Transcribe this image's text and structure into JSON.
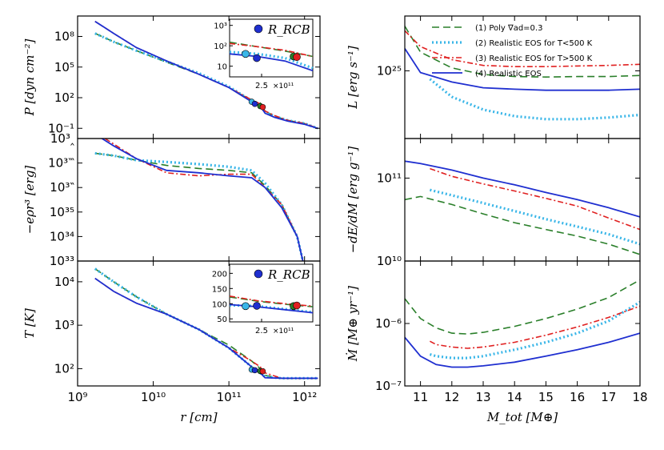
{
  "colors": {
    "poly": "#2a7f2a",
    "lowT": "#3ab6e8",
    "highT": "#e02020",
    "real": "#1f2fd0"
  },
  "chart_data": [
    {
      "id": "P",
      "type": "line",
      "ylabel": "P [dyn cm⁻²]",
      "xscale": "log",
      "yscale": "log",
      "xlim": [
        1000000000.0,
        1600000000000.0
      ],
      "ylim": [
        0.01,
        10000000000.0
      ],
      "ytick_labels": [
        "10⁻¹",
        "10²",
        "10⁵",
        "10⁸"
      ],
      "series": [
        {
          "name": "poly",
          "x": [
            1700000000.0,
            3000000000.0,
            6000000000.0,
            15000000000.0,
            40000000000.0,
            100000000000.0,
            200000000000.0,
            260000000000.0,
            300000000000.0,
            400000000000.0,
            600000000000.0,
            1000000000000.0,
            1500000000000.0
          ],
          "y": [
            200000000.0,
            30000000.0,
            4000000.0,
            300000.0,
            20000.0,
            1000.0,
            50,
            30,
            5,
            1.5,
            0.6,
            0.3,
            0.1
          ]
        },
        {
          "name": "lowT",
          "x": [
            1700000000.0,
            3000000000.0,
            6000000000.0,
            15000000000.0,
            40000000000.0,
            100000000000.0,
            200000000000.0,
            260000000000.0,
            300000000000.0,
            400000000000.0,
            600000000000.0,
            1000000000000.0,
            1500000000000.0
          ],
          "y": [
            200000000.0,
            30000000.0,
            4000000.0,
            350000.0,
            25000.0,
            1200.0,
            50,
            20,
            4,
            1.5,
            0.6,
            0.3,
            0.1
          ]
        },
        {
          "name": "highT",
          "x": [
            1700000000.0,
            3000000000.0,
            6000000000.0,
            15000000000.0,
            40000000000.0,
            100000000000.0,
            200000000000.0,
            260000000000.0,
            300000000000.0,
            400000000000.0,
            600000000000.0,
            1000000000000.0,
            1500000000000.0
          ],
          "y": [
            3000000000.0,
            200000000.0,
            8000000.0,
            400000.0,
            20000.0,
            1000.0,
            60,
            25,
            5,
            1.8,
            0.6,
            0.3,
            0.1
          ]
        },
        {
          "name": "real",
          "x": [
            1700000000.0,
            3000000000.0,
            6000000000.0,
            15000000000.0,
            40000000000.0,
            100000000000.0,
            200000000000.0,
            260000000000.0,
            300000000000.0,
            400000000000.0,
            600000000000.0,
            1000000000000.0,
            1500000000000.0
          ],
          "y": [
            3000000000.0,
            200000000.0,
            8000000.0,
            400000.0,
            20000.0,
            1000.0,
            40,
            15,
            3,
            1.2,
            0.5,
            0.25,
            0.1
          ]
        }
      ],
      "markers": [
        {
          "series": "lowT",
          "x": 200000000000.0,
          "y": 40
        },
        {
          "series": "real",
          "x": 220000000000.0,
          "y": 25
        },
        {
          "series": "poly",
          "x": 260000000000.0,
          "y": 15
        },
        {
          "series": "highT",
          "x": 280000000000.0,
          "y": 12
        }
      ],
      "inset": {
        "label": "R_RCB",
        "ytick_labels": [
          "10",
          "10²",
          "10³"
        ],
        "ylim": [
          3,
          2000
        ],
        "xtick_label": "2.5",
        "offset_text": "×10¹¹",
        "series": [
          {
            "name": "poly",
            "y": [
              150,
              90,
              55,
              30
            ]
          },
          {
            "name": "lowT",
            "y": [
              50,
              40,
              25,
              8
            ]
          },
          {
            "name": "highT",
            "y": [
              130,
              90,
              60,
              30
            ]
          },
          {
            "name": "real",
            "y": [
              40,
              30,
              18,
              6
            ]
          }
        ],
        "markers": [
          {
            "series": "lowT",
            "y": 40
          },
          {
            "series": "real",
            "y": 25
          },
          {
            "series": "poly",
            "y": 30
          },
          {
            "series": "highT",
            "y": 28
          }
        ]
      }
    },
    {
      "id": "E",
      "type": "line",
      "ylabel": "−eρr³ [erg]",
      "xscale": "log",
      "yscale": "log",
      "xlim": [
        1000000000.0,
        1600000000000.0
      ],
      "ylim": [
        1e+33,
        1e+38
      ],
      "ytick_labels": [
        "10³³",
        "10³⁴",
        "10³⁵",
        "10³‶",
        "10³‷",
        "10³‸"
      ],
      "series": [
        {
          "name": "poly",
          "x": [
            1700000000.0,
            3000000000.0,
            6000000000.0,
            15000000000.0,
            40000000000.0,
            100000000000.0,
            200000000000.0,
            300000000000.0,
            500000000000.0,
            800000000000.0,
            950000000000.0
          ],
          "y": [
            2.5e+37,
            2e+37,
            1.3e+37,
            8e+36,
            6e+36,
            5e+36,
            4e+36,
            1.2e+36,
            2e+35,
            1e+34,
            1e+33
          ]
        },
        {
          "name": "lowT",
          "x": [
            1700000000.0,
            3000000000.0,
            6000000000.0,
            15000000000.0,
            40000000000.0,
            100000000000.0,
            200000000000.0,
            300000000000.0,
            500000000000.0,
            800000000000.0,
            950000000000.0
          ],
          "y": [
            2.5e+37,
            2e+37,
            1.3e+37,
            1.1e+37,
            9e+36,
            7e+36,
            5e+36,
            1.5e+36,
            2e+35,
            1e+34,
            1e+33
          ]
        },
        {
          "name": "highT",
          "x": [
            1700000000.0,
            3000000000.0,
            6000000000.0,
            15000000000.0,
            40000000000.0,
            100000000000.0,
            200000000000.0,
            300000000000.0,
            500000000000.0,
            800000000000.0,
            950000000000.0
          ],
          "y": [
            1.8e+38,
            6e+37,
            1.5e+37,
            4e+36,
            3e+36,
            3.5e+36,
            3.5e+36,
            1e+36,
            2e+35,
            1e+34,
            1e+33
          ]
        },
        {
          "name": "real",
          "x": [
            1700000000.0,
            3000000000.0,
            6000000000.0,
            15000000000.0,
            40000000000.0,
            100000000000.0,
            200000000000.0,
            300000000000.0,
            500000000000.0,
            800000000000.0,
            950000000000.0
          ],
          "y": [
            1.5e+38,
            5e+37,
            1.5e+37,
            5e+36,
            4e+36,
            3e+36,
            2.5e+36,
            1e+36,
            1.5e+35,
            1e+34,
            1e+33
          ]
        }
      ]
    },
    {
      "id": "T",
      "type": "line",
      "ylabel": "T [K]",
      "xscale": "log",
      "yscale": "log",
      "xlim": [
        1000000000.0,
        1600000000000.0
      ],
      "ylim": [
        40,
        30000.0
      ],
      "ytick_labels": [
        "10²",
        "10³",
        "10⁴"
      ],
      "series": [
        {
          "name": "poly",
          "x": [
            1700000000.0,
            3000000000.0,
            6000000000.0,
            15000000000.0,
            40000000000.0,
            100000000000.0,
            200000000000.0,
            260000000000.0,
            300000000000.0,
            500000000000.0,
            800000000000.0,
            1500000000000.0
          ],
          "y": [
            20000.0,
            10000.0,
            4500.0,
            1800.0,
            800,
            350,
            150,
            100,
            70,
            60,
            60,
            60
          ]
        },
        {
          "name": "lowT",
          "x": [
            1700000000.0,
            3000000000.0,
            6000000000.0,
            15000000000.0,
            40000000000.0,
            100000000000.0,
            200000000000.0,
            260000000000.0,
            300000000000.0,
            500000000000.0,
            800000000000.0,
            1500000000000.0
          ],
          "y": [
            20000.0,
            10000.0,
            4500.0,
            1800.0,
            800,
            300,
            110,
            80,
            65,
            60,
            60,
            60
          ]
        },
        {
          "name": "highT",
          "x": [
            1700000000.0,
            3000000000.0,
            6000000000.0,
            15000000000.0,
            40000000000.0,
            100000000000.0,
            200000000000.0,
            260000000000.0,
            300000000000.0,
            500000000000.0,
            800000000000.0,
            1500000000000.0
          ],
          "y": [
            12000.0,
            6000.0,
            3200.0,
            1800.0,
            800,
            300,
            150,
            110,
            80,
            60,
            60,
            60
          ]
        },
        {
          "name": "real",
          "x": [
            1700000000.0,
            3000000000.0,
            6000000000.0,
            15000000000.0,
            40000000000.0,
            100000000000.0,
            200000000000.0,
            260000000000.0,
            300000000000.0,
            500000000000.0,
            800000000000.0,
            1500000000000.0
          ],
          "y": [
            12000.0,
            6000.0,
            3200.0,
            1800.0,
            800,
            300,
            110,
            80,
            62,
            60,
            60,
            60
          ]
        }
      ],
      "markers": [
        {
          "series": "lowT",
          "x": 200000000000.0,
          "y": 95
        },
        {
          "series": "real",
          "x": 220000000000.0,
          "y": 92
        },
        {
          "series": "poly",
          "x": 260000000000.0,
          "y": 88
        },
        {
          "series": "highT",
          "x": 280000000000.0,
          "y": 87
        }
      ],
      "inset": {
        "label": "R_RCB",
        "ytick_labels": [
          "50",
          "100",
          "150",
          "200"
        ],
        "ylim": [
          40,
          230
        ],
        "xtick_label": "2.5",
        "offset_text": "×10¹¹",
        "series": [
          {
            "name": "poly",
            "y": [
              122,
              108,
              98,
              90
            ]
          },
          {
            "name": "lowT",
            "y": [
              95,
              92,
              82,
              72
            ]
          },
          {
            "name": "highT",
            "y": [
              125,
              110,
              100,
              92
            ]
          },
          {
            "name": "real",
            "y": [
              97,
              90,
              80,
              70
            ]
          }
        ],
        "markers": [
          {
            "series": "lowT",
            "y": 92
          },
          {
            "series": "real",
            "y": 93
          },
          {
            "series": "poly",
            "y": 92
          },
          {
            "series": "highT",
            "y": 94
          }
        ]
      },
      "xlabel": "r [cm]",
      "xtick_labels": [
        "10⁹",
        "10¹⁰",
        "10¹¹",
        "10¹²"
      ]
    },
    {
      "id": "L",
      "type": "line",
      "ylabel": "L [erg s⁻¹]",
      "xscale": "linear",
      "yscale": "log",
      "xlim": [
        10.5,
        18
      ],
      "ylim": [
        1.5e+23,
        3e+26
      ],
      "ytick_labels": [
        "10²⁵"
      ],
      "series": [
        {
          "name": "poly",
          "x": [
            10.5,
            11,
            12,
            13,
            14,
            15,
            16,
            17,
            18
          ],
          "y": [
            1.6e+26,
            3.2e+25,
            1.2e+25,
            8e+24,
            7e+24,
            6.8e+24,
            7e+24,
            7e+24,
            7.5e+24
          ]
        },
        {
          "name": "lowT",
          "x": [
            11.3,
            12,
            13,
            14,
            15,
            16,
            17,
            18
          ],
          "y": [
            6e+24,
            2e+24,
            9e+23,
            6e+23,
            5e+23,
            5e+23,
            5.5e+23,
            6.5e+23
          ]
        },
        {
          "name": "highT",
          "x": [
            10.5,
            11,
            12,
            13,
            14,
            15,
            16,
            17,
            18
          ],
          "y": [
            1.2e+26,
            4.5e+25,
            2e+25,
            1.4e+25,
            1.3e+25,
            1.3e+25,
            1.35e+25,
            1.4e+25,
            1.5e+25
          ]
        },
        {
          "name": "real",
          "x": [
            10.5,
            11,
            12,
            13,
            14,
            15,
            16,
            17,
            18
          ],
          "y": [
            4e+25,
            9e+24,
            5e+24,
            3.5e+24,
            3.2e+24,
            3e+24,
            3e+24,
            3e+24,
            3.2e+24
          ]
        }
      ],
      "legend": {
        "location": "upper-right",
        "entries": [
          {
            "series": "poly",
            "label": "(1) Poly ∇ad=0.3"
          },
          {
            "series": "lowT",
            "label": "(2) Realistic EOS for T<500 K"
          },
          {
            "series": "highT",
            "label": "(3) Realistic EOS for T>500 K"
          },
          {
            "series": "real",
            "label": "(4) Realistic EOS"
          }
        ]
      }
    },
    {
      "id": "dEdM",
      "type": "line",
      "ylabel": "−dE/dM [erg g⁻¹]",
      "xscale": "linear",
      "yscale": "log",
      "xlim": [
        10.5,
        18
      ],
      "ylim": [
        10000000000.0,
        300000000000.0
      ],
      "ytick_labels": [
        "10¹⁰",
        "10¹¹"
      ],
      "series": [
        {
          "name": "poly",
          "x": [
            10.5,
            11,
            12,
            13,
            14,
            15,
            16,
            17,
            18
          ],
          "y": [
            55000000000.0,
            60000000000.0,
            48000000000.0,
            37000000000.0,
            29000000000.0,
            24000000000.0,
            20000000000.0,
            16000000000.0,
            12000000000.0
          ]
        },
        {
          "name": "lowT",
          "x": [
            11.3,
            12,
            13,
            14,
            15,
            16,
            17,
            18
          ],
          "y": [
            72000000000.0,
            62000000000.0,
            50000000000.0,
            40000000000.0,
            32000000000.0,
            26000000000.0,
            21000000000.0,
            16000000000.0
          ]
        },
        {
          "name": "highT",
          "x": [
            11.3,
            12,
            13,
            14,
            15,
            16,
            17,
            18
          ],
          "y": [
            130000000000.0,
            105000000000.0,
            85000000000.0,
            70000000000.0,
            57000000000.0,
            46000000000.0,
            33000000000.0,
            24000000000.0
          ]
        },
        {
          "name": "real",
          "x": [
            10.5,
            11,
            12,
            13,
            14,
            15,
            16,
            17,
            18
          ],
          "y": [
            160000000000.0,
            150000000000.0,
            125000000000.0,
            100000000000.0,
            83000000000.0,
            67000000000.0,
            55000000000.0,
            44000000000.0,
            34000000000.0
          ]
        }
      ]
    },
    {
      "id": "Mdot",
      "type": "line",
      "ylabel": "Ṁ [M⊕ yr⁻¹]",
      "xscale": "linear",
      "yscale": "log",
      "xlim": [
        10.5,
        18
      ],
      "ylim": [
        1e-07,
        1e-05
      ],
      "ytick_labels": [
        "10⁻⁷",
        "10⁻⁶"
      ],
      "series": [
        {
          "name": "poly",
          "x": [
            10.5,
            11,
            11.5,
            12,
            12.5,
            13,
            14,
            15,
            16,
            17,
            18
          ],
          "y": [
            2.5e-06,
            1.2e-06,
            8.5e-07,
            7e-07,
            6.8e-07,
            7.2e-07,
            9e-07,
            1.2e-06,
            1.7e-06,
            2.6e-06,
            5e-06
          ]
        },
        {
          "name": "lowT",
          "x": [
            11.3,
            11.5,
            12,
            12.5,
            13,
            14,
            15,
            16,
            17,
            18
          ],
          "y": [
            3.2e-07,
            3e-07,
            2.8e-07,
            2.8e-07,
            3e-07,
            3.8e-07,
            5e-07,
            7e-07,
            1.1e-06,
            2.2e-06
          ]
        },
        {
          "name": "highT",
          "x": [
            11.3,
            11.5,
            12,
            12.5,
            13,
            14,
            15,
            16,
            17,
            18
          ],
          "y": [
            5.2e-07,
            4.6e-07,
            4.2e-07,
            4e-07,
            4.2e-07,
            5e-07,
            6.5e-07,
            8.8e-07,
            1.25e-06,
            1.9e-06
          ]
        },
        {
          "name": "real",
          "x": [
            10.5,
            11,
            11.5,
            12,
            12.5,
            13,
            14,
            15,
            16,
            17,
            18
          ],
          "y": [
            6e-07,
            3e-07,
            2.2e-07,
            2e-07,
            2e-07,
            2.1e-07,
            2.4e-07,
            3e-07,
            3.8e-07,
            5e-07,
            7e-07
          ]
        }
      ],
      "xlabel": "M_tot [M⊕]",
      "xtick_labels": [
        "11",
        "12",
        "13",
        "14",
        "15",
        "16",
        "17",
        "18"
      ]
    }
  ]
}
